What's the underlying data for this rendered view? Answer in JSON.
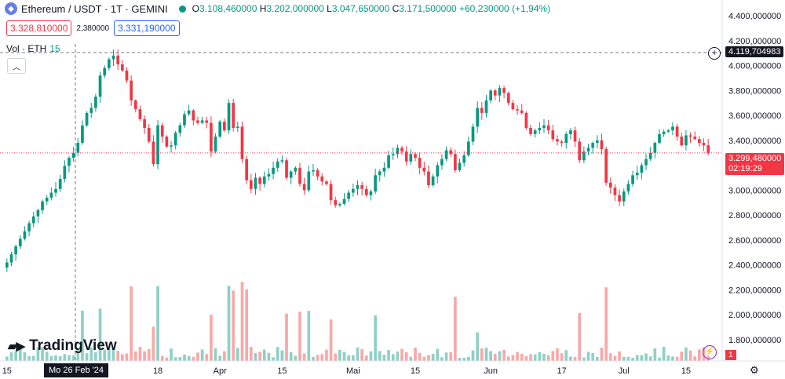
{
  "header": {
    "symbol_title": "Ethereum / USDT · 1T · GEMINI",
    "symbol_icon": "ethereum-icon",
    "o_label": "O",
    "o_value": "3.108,460000",
    "h_label": "H",
    "h_value": "3.202,000000",
    "l_label": "L",
    "l_value": "3.047,650000",
    "c_label": "C",
    "c_value": "3.171,500000",
    "change": "+60,230000 (+1,94%)",
    "status_color": "#089981"
  },
  "trade": {
    "sell_price": "3.328,810000",
    "spread": "2,380000",
    "buy_price": "3.331,190000"
  },
  "volume_legend": {
    "label": "Vol · ETH",
    "value": "15"
  },
  "logo": {
    "text": "TradingView"
  },
  "crosshair": {
    "price_label": "4.119,704983",
    "date_label": "Mo 26 Feb '24",
    "plus_icon": "plus-circle-icon"
  },
  "last_price": {
    "price": "3.299,480000",
    "countdown": "02:19:29"
  },
  "volume_badge": "1",
  "chart_data": {
    "type": "candlestick",
    "symbol": "Ethereum / USDT",
    "interval": "1T",
    "exchange": "GEMINI",
    "colors": {
      "up": "#089981",
      "down": "#f23645",
      "vol_up": "#8fd0c6",
      "vol_down": "#f7a9a7"
    },
    "y_ticks": [
      "4.400,000000",
      "4.200,000000",
      "4.000,000000",
      "3.800,000000",
      "3.600,000000",
      "3.400,000000",
      "3.200,000000",
      "3.000,000000",
      "2.800,000000",
      "2.600,000000",
      "2.400,000000",
      "2.200,000000",
      "2.000,000000",
      "1.800,000000"
    ],
    "y_tick_values": [
      4400,
      4200,
      4000,
      3800,
      3600,
      3400,
      3200,
      3000,
      2800,
      2600,
      2400,
      2200,
      2000,
      1800
    ],
    "ylim": [
      1800,
      4450
    ],
    "x_ticks": [
      {
        "label": "15",
        "day": 0
      },
      {
        "label": "18",
        "day": 34
      },
      {
        "label": "Apr",
        "day": 48
      },
      {
        "label": "15",
        "day": 62
      },
      {
        "label": "Mai",
        "day": 78
      },
      {
        "label": "15",
        "day": 92
      },
      {
        "label": "Jun",
        "day": 109
      },
      {
        "label": "17",
        "day": 125
      },
      {
        "label": "Jul",
        "day": 139
      },
      {
        "label": "15",
        "day": 153
      }
    ],
    "x_start_label": "15 Feb",
    "closes": [
      2420,
      2485,
      2550,
      2610,
      2670,
      2735,
      2790,
      2840,
      2910,
      2940,
      2980,
      3010,
      3090,
      3195,
      3260,
      3300,
      3380,
      3520,
      3620,
      3660,
      3750,
      3920,
      3980,
      4050,
      4080,
      4010,
      3960,
      3880,
      3720,
      3650,
      3570,
      3500,
      3390,
      3210,
      3520,
      3430,
      3350,
      3360,
      3460,
      3520,
      3610,
      3640,
      3560,
      3540,
      3560,
      3540,
      3310,
      3430,
      3550,
      3480,
      3700,
      3500,
      3510,
      3250,
      3080,
      3010,
      3100,
      3050,
      3110,
      3130,
      3180,
      3230,
      3240,
      3100,
      3150,
      3180,
      3050,
      3000,
      3150,
      3160,
      3110,
      3070,
      3050,
      2920,
      2880,
      2890,
      2930,
      2980,
      3010,
      3040,
      3010,
      2960,
      2990,
      3120,
      3150,
      3180,
      3280,
      3290,
      3340,
      3310,
      3230,
      3290,
      3260,
      3180,
      3150,
      3040,
      3110,
      3200,
      3250,
      3320,
      3290,
      3160,
      3220,
      3280,
      3390,
      3510,
      3660,
      3620,
      3720,
      3800,
      3760,
      3820,
      3780,
      3700,
      3650,
      3640,
      3620,
      3500,
      3450,
      3480,
      3500,
      3520,
      3480,
      3410,
      3390,
      3380,
      3450,
      3480,
      3390,
      3240,
      3310,
      3340,
      3380,
      3400,
      3330,
      3060,
      3020,
      2960,
      2910,
      2990,
      3050,
      3120,
      3140,
      3200,
      3250,
      3300,
      3380,
      3450,
      3470,
      3480,
      3510,
      3430,
      3360,
      3440,
      3430,
      3410,
      3380,
      3360,
      3299
    ]
  }
}
